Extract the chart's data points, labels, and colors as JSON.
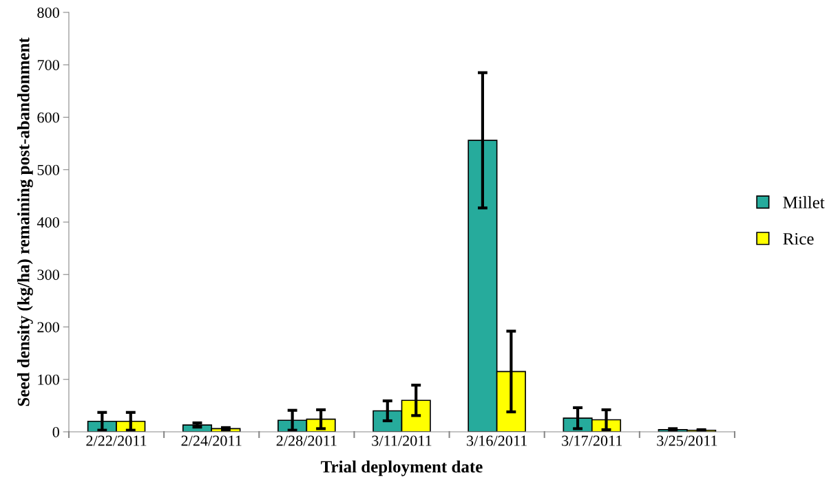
{
  "chart_data": {
    "type": "bar",
    "xlabel": "Trial deployment date",
    "ylabel": "Seed density (kg/ha) remaining post-abandonment",
    "categories": [
      "2/22/2011",
      "2/24/2011",
      "2/28/2011",
      "3/11/2011",
      "3/16/2011",
      "3/17/2011",
      "3/25/2011"
    ],
    "series": [
      {
        "name": "Millet",
        "color": "#26ab9c",
        "values": [
          20,
          13,
          22,
          40,
          556,
          26,
          4
        ],
        "errors": [
          17,
          4,
          19,
          19,
          129,
          20,
          2
        ]
      },
      {
        "name": "Rice",
        "color": "#ffff00",
        "values": [
          20,
          6,
          24,
          60,
          115,
          23,
          3
        ],
        "errors": [
          17,
          2,
          18,
          29,
          77,
          19,
          1
        ]
      }
    ],
    "ylim": [
      0,
      800
    ],
    "yticks": [
      0,
      100,
      200,
      300,
      400,
      500,
      600,
      700,
      800
    ],
    "grid": false,
    "legend": "right"
  }
}
